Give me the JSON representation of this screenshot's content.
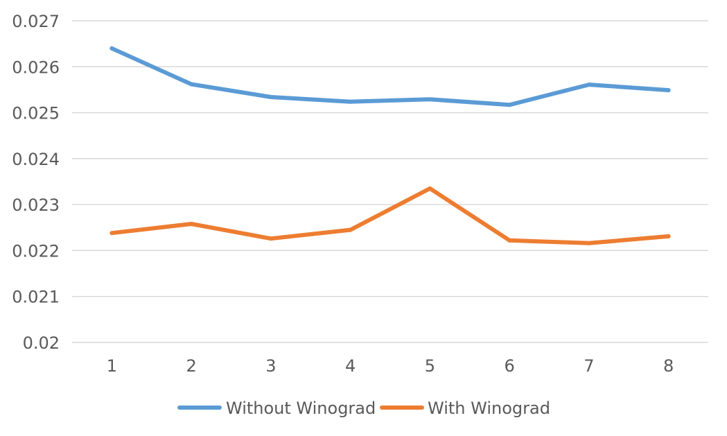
{
  "chart_data": {
    "type": "line",
    "title": "",
    "xlabel": "",
    "ylabel": "",
    "categories": [
      "1",
      "2",
      "3",
      "4",
      "5",
      "6",
      "7",
      "8"
    ],
    "ylim": [
      0.02,
      0.027
    ],
    "y_ticks": [
      "0.02",
      "0.021",
      "0.022",
      "0.023",
      "0.024",
      "0.025",
      "0.026",
      "0.027"
    ],
    "grid": true,
    "legend_position": "bottom",
    "series": [
      {
        "name": "Without Winograd",
        "color": "#5b9bd5",
        "values": [
          0.0264,
          0.02562,
          0.02534,
          0.02524,
          0.02529,
          0.02517,
          0.02561,
          0.02549
        ]
      },
      {
        "name": "With Winograd",
        "color": "#ed7d31",
        "values": [
          0.02238,
          0.02258,
          0.02226,
          0.02245,
          0.02335,
          0.02222,
          0.02216,
          0.02231
        ]
      }
    ]
  }
}
